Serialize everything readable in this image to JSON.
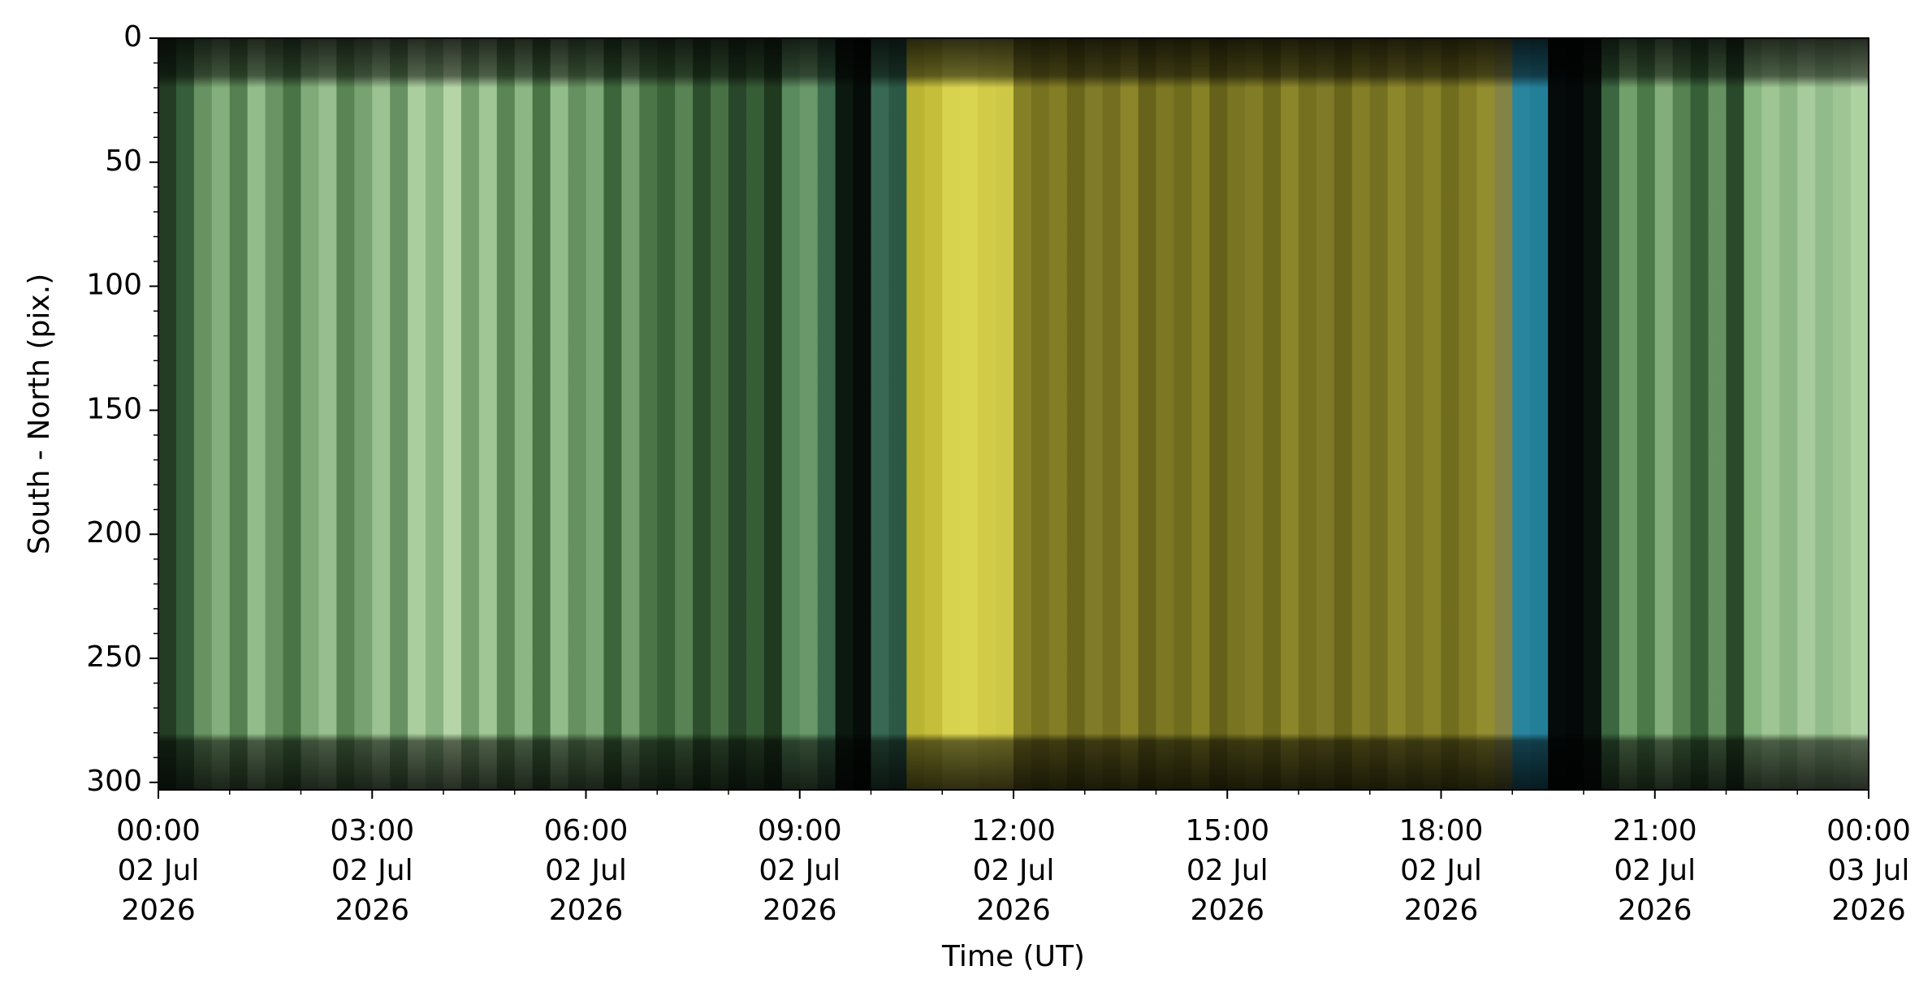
{
  "chart_data": {
    "type": "keogram",
    "xlabel": "Time (UT)",
    "ylabel": "South - North (pix.)",
    "xlim": [
      0,
      24
    ],
    "ylim": [
      303,
      0
    ],
    "xticks": [
      {
        "value": 0,
        "label": "00:00\n02 Jul\n2026"
      },
      {
        "value": 3,
        "label": "03:00\n02 Jul\n2026"
      },
      {
        "value": 6,
        "label": "06:00\n02 Jul\n2026"
      },
      {
        "value": 9,
        "label": "09:00\n02 Jul\n2026"
      },
      {
        "value": 12,
        "label": "12:00\n02 Jul\n2026"
      },
      {
        "value": 15,
        "label": "15:00\n02 Jul\n2026"
      },
      {
        "value": 18,
        "label": "18:00\n02 Jul\n2026"
      },
      {
        "value": 21,
        "label": "21:00\n02 Jul\n2026"
      },
      {
        "value": 24,
        "label": "00:00\n03 Jul\n2026"
      }
    ],
    "yticks": [
      0,
      50,
      100,
      150,
      200,
      250,
      300
    ],
    "x_minor_step": 1,
    "y_minor_step": 10,
    "columns": [
      "#253f25",
      "#3a633d",
      "#6e9a68",
      "#8ab882",
      "#5b8755",
      "#9ac792",
      "#6f9c69",
      "#4d7a4a",
      "#87b47f",
      "#9ec895",
      "#5e8b58",
      "#7faa78",
      "#a3cc98",
      "#6d9968",
      "#b4d9a6",
      "#8fbb87",
      "#c0e0b0",
      "#7aa773",
      "#a9d09d",
      "#5f8c59",
      "#93bf8a",
      "#4e7a4a",
      "#9bc692",
      "#6a9764",
      "#83b07c",
      "#3f6a3e",
      "#7ca876",
      "#4f7b4b",
      "#3c663b",
      "#5d8a58",
      "#2f522f",
      "#4c784a",
      "#2a4a2b",
      "#3a623a",
      "#223d22",
      "#5f9263",
      "#6fa070",
      "#3f6f50",
      "#0d1a12",
      "#060d09",
      "#3b6e58",
      "#2e5c4a",
      "#c4bd37",
      "#cfc83e",
      "#e2de52",
      "#e5e055",
      "#dcd64c",
      "#d8d24a",
      "#8c8628",
      "#7d7822",
      "#8a8427",
      "#6f6b1d",
      "#86812a",
      "#7a7522",
      "#938c2c",
      "#6c681c",
      "#827d25",
      "#76721f",
      "#8e8828",
      "#6a661b",
      "#7f7a23",
      "#898328",
      "#726e1e",
      "#938d2d",
      "#7b7621",
      "#86802a",
      "#6e6a1c",
      "#8b8528",
      "#7a7623",
      "#948e2e",
      "#817c25",
      "#8f892a",
      "#77731f",
      "#8a8528",
      "#9a9431",
      "#8a8a4a",
      "#2b8ba6",
      "#2585a0",
      "#050b0b",
      "#040808",
      "#0b150f",
      "#3d6b43",
      "#78a870",
      "#4f7f4c",
      "#8ab680",
      "#5a8855",
      "#3a643a",
      "#6a9965",
      "#2c4d2d",
      "#8fbf86",
      "#a6cf9b",
      "#93c08a",
      "#b0d6a4",
      "#9ac592",
      "#a8cf9c",
      "#b7dcaa"
    ]
  }
}
